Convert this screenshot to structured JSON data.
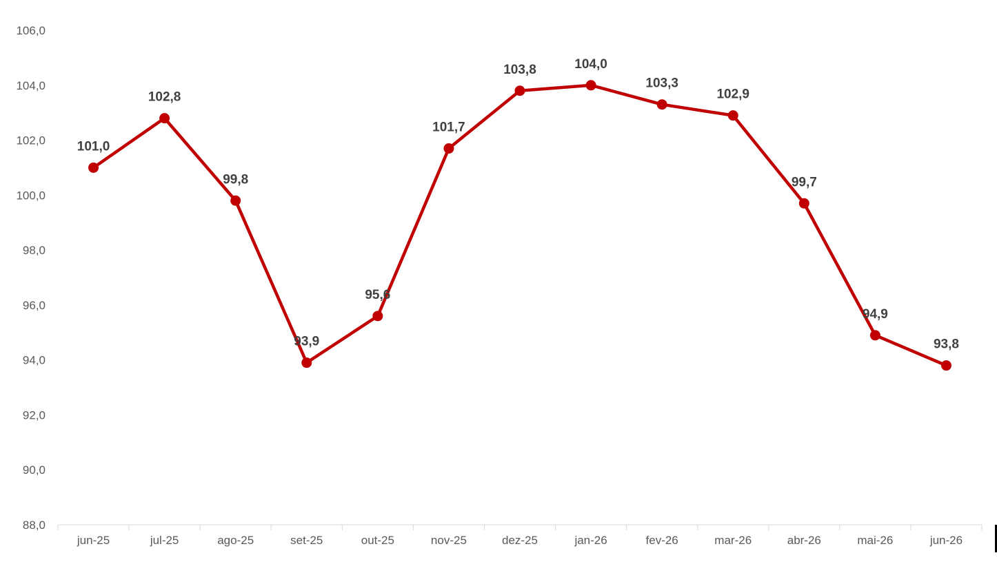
{
  "chart_data": {
    "type": "line",
    "title": "",
    "xlabel": "",
    "ylabel": "",
    "categories": [
      "jun-25",
      "jul-25",
      "ago-25",
      "set-25",
      "out-25",
      "nov-25",
      "dez-25",
      "jan-26",
      "fev-26",
      "mar-26",
      "abr-26",
      "mai-26",
      "jun-26"
    ],
    "series": [
      {
        "values": [
          101.0,
          102.8,
          99.8,
          93.9,
          95.6,
          101.7,
          103.8,
          104.0,
          103.3,
          102.9,
          99.7,
          94.9,
          93.8
        ],
        "labels": [
          "101,0",
          "102,8",
          "99,8",
          "93,9",
          "95,6",
          "101,7",
          "103,8",
          "104,0",
          "103,3",
          "102,9",
          "99,7",
          "94,9",
          "93,8"
        ],
        "color": "#c00000"
      }
    ],
    "ylim": [
      88.0,
      106.0
    ],
    "yticks": [
      "88,0",
      "90,0",
      "92,0",
      "94,0",
      "96,0",
      "98,0",
      "100,0",
      "102,0",
      "104,0",
      "106,0"
    ],
    "grid": false,
    "legend": "none"
  }
}
